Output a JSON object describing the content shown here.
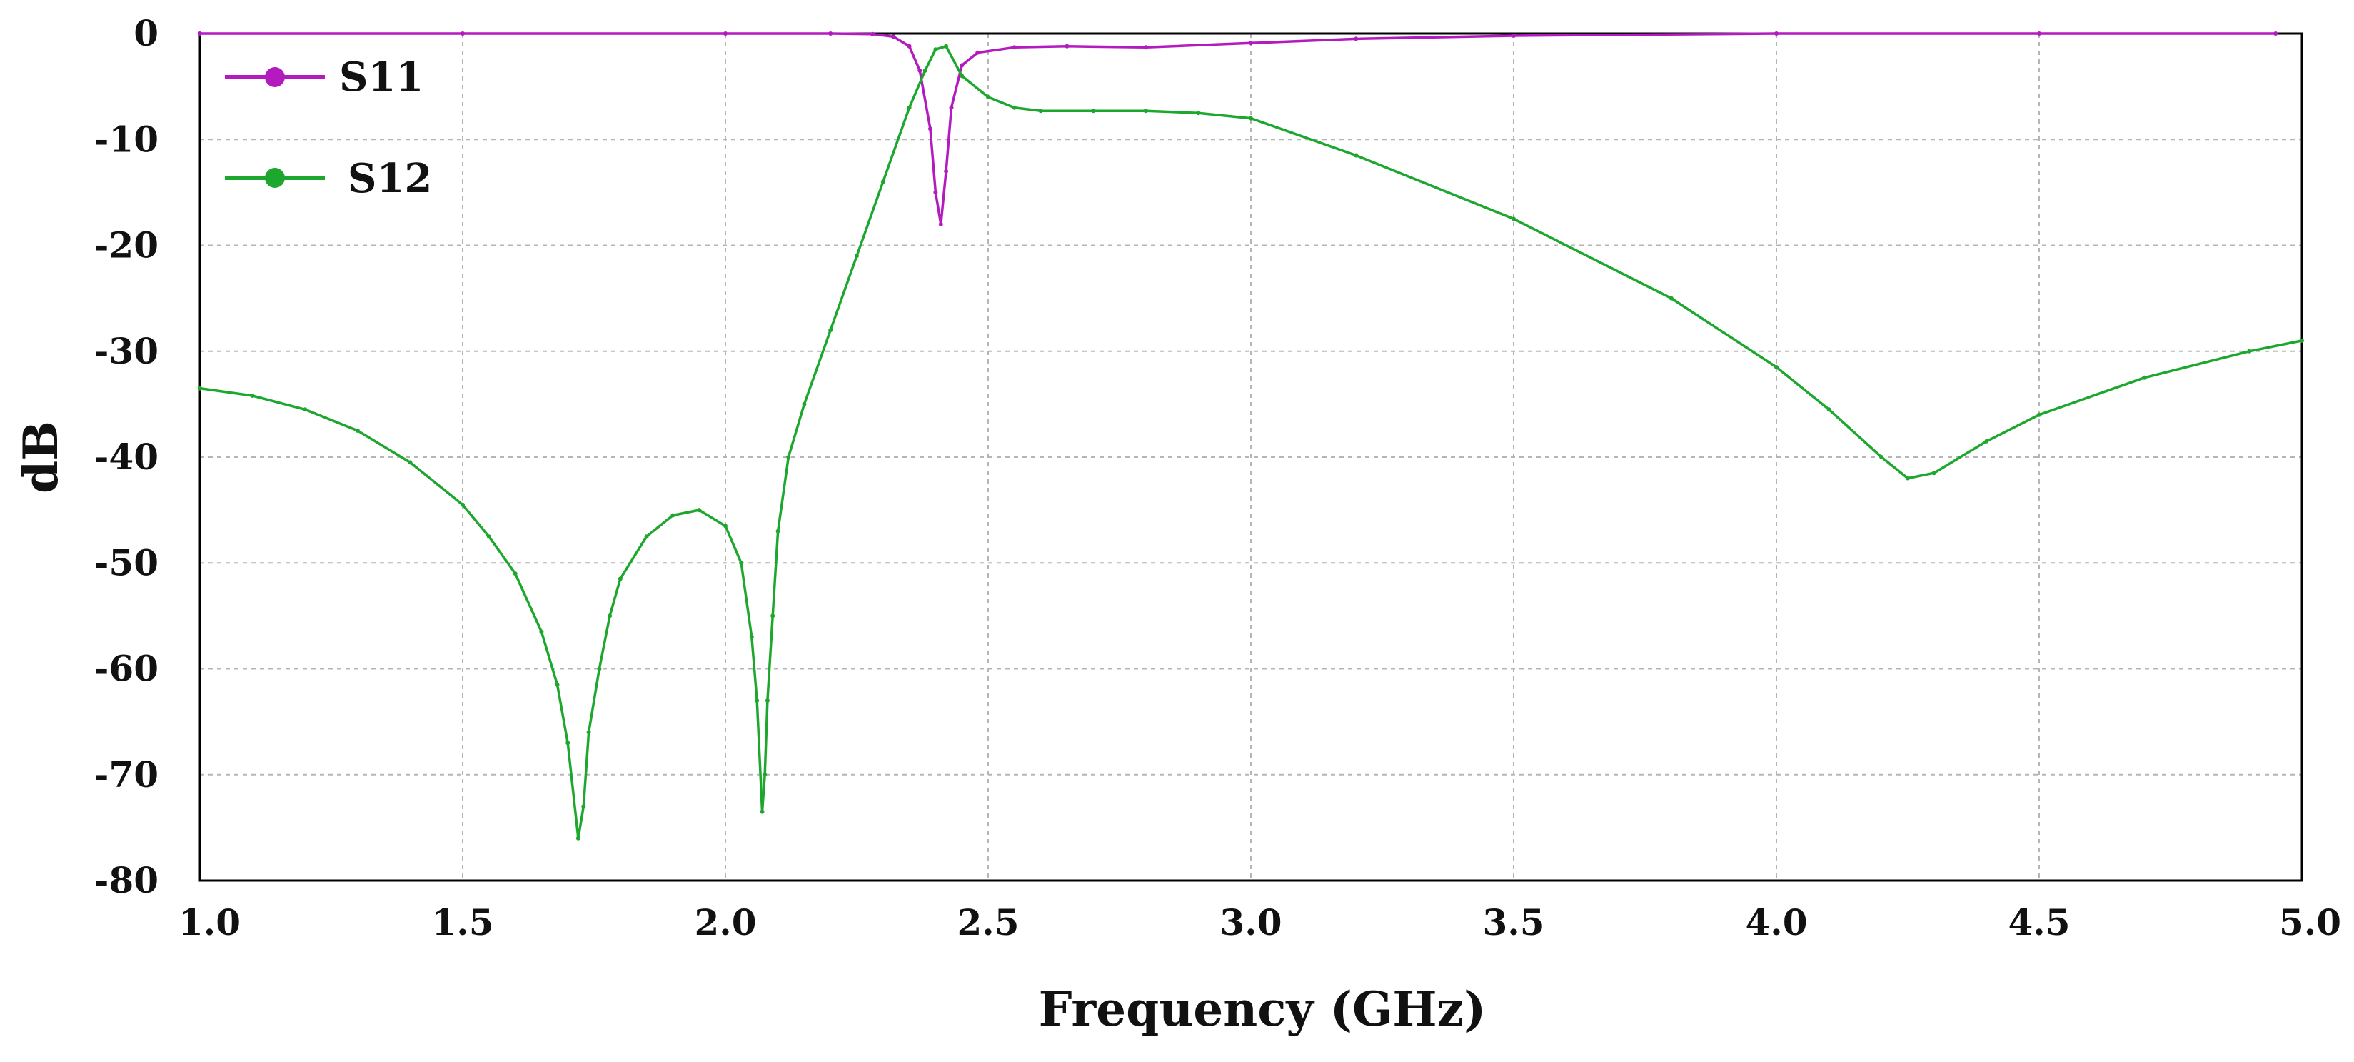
{
  "chart_data": {
    "type": "line",
    "title": "",
    "xlabel": "Frequency (GHz)",
    "ylabel": "dB",
    "xlim": [
      1.0,
      5.0
    ],
    "ylim": [
      -80,
      0
    ],
    "grid": true,
    "legend_position": "top-left",
    "x_tick_labels": [
      "1.0",
      "1.5",
      "2.0",
      "2.5",
      "3.0",
      "3.5",
      "4.0",
      "4.5",
      "5.0"
    ],
    "y_tick_labels": [
      "0",
      "-10",
      "-20",
      "-30",
      "-40",
      "-50",
      "-60",
      "-70",
      "-80"
    ],
    "x_ticks": [
      1.0,
      1.5,
      2.0,
      2.5,
      3.0,
      3.5,
      4.0,
      4.5,
      5.0
    ],
    "y_ticks": [
      0,
      -10,
      -20,
      -30,
      -40,
      -50,
      -60,
      -70,
      -80
    ],
    "series": [
      {
        "name": "S11",
        "color": "#b31bc0",
        "x": [
          1.0,
          1.5,
          2.0,
          2.2,
          2.28,
          2.32,
          2.35,
          2.37,
          2.39,
          2.4,
          2.41,
          2.42,
          2.43,
          2.45,
          2.48,
          2.55,
          2.65,
          2.8,
          3.0,
          3.2,
          3.5,
          4.0,
          4.5,
          4.95
        ],
        "y": [
          0,
          0,
          0,
          0,
          -0.05,
          -0.3,
          -1.2,
          -3.5,
          -9.0,
          -15.0,
          -18.0,
          -13.0,
          -7.0,
          -3.0,
          -1.8,
          -1.3,
          -1.2,
          -1.3,
          -0.9,
          -0.5,
          -0.2,
          0,
          0,
          0
        ]
      },
      {
        "name": "S12",
        "color": "#1ea72e",
        "x": [
          1.0,
          1.1,
          1.2,
          1.3,
          1.4,
          1.5,
          1.55,
          1.6,
          1.65,
          1.68,
          1.7,
          1.72,
          1.73,
          1.74,
          1.76,
          1.78,
          1.8,
          1.85,
          1.9,
          1.95,
          2.0,
          2.03,
          2.05,
          2.06,
          2.07,
          2.075,
          2.08,
          2.09,
          2.1,
          2.12,
          2.15,
          2.2,
          2.25,
          2.3,
          2.35,
          2.38,
          2.4,
          2.42,
          2.45,
          2.5,
          2.55,
          2.6,
          2.7,
          2.8,
          2.9,
          3.0,
          3.2,
          3.5,
          3.8,
          4.0,
          4.1,
          4.2,
          4.25,
          4.3,
          4.4,
          4.5,
          4.7,
          4.9,
          5.0
        ],
        "y": [
          -33.5,
          -34.2,
          -35.5,
          -37.5,
          -40.5,
          -44.5,
          -47.5,
          -51.0,
          -56.5,
          -61.5,
          -67.0,
          -76.0,
          -73.0,
          -66.0,
          -60.0,
          -55.0,
          -51.5,
          -47.5,
          -45.5,
          -45.0,
          -46.5,
          -50.0,
          -57.0,
          -63.0,
          -73.5,
          -70.0,
          -63.0,
          -55.0,
          -47.0,
          -40.0,
          -35.0,
          -28.0,
          -21.0,
          -14.0,
          -7.0,
          -3.5,
          -1.5,
          -1.2,
          -4.0,
          -6.0,
          -7.0,
          -7.3,
          -7.3,
          -7.3,
          -7.5,
          -8.0,
          -11.5,
          -17.5,
          -25.0,
          -31.5,
          -35.5,
          -40.0,
          -42.0,
          -41.5,
          -38.5,
          -36.0,
          -32.5,
          -30.0,
          -29.0
        ]
      }
    ]
  }
}
